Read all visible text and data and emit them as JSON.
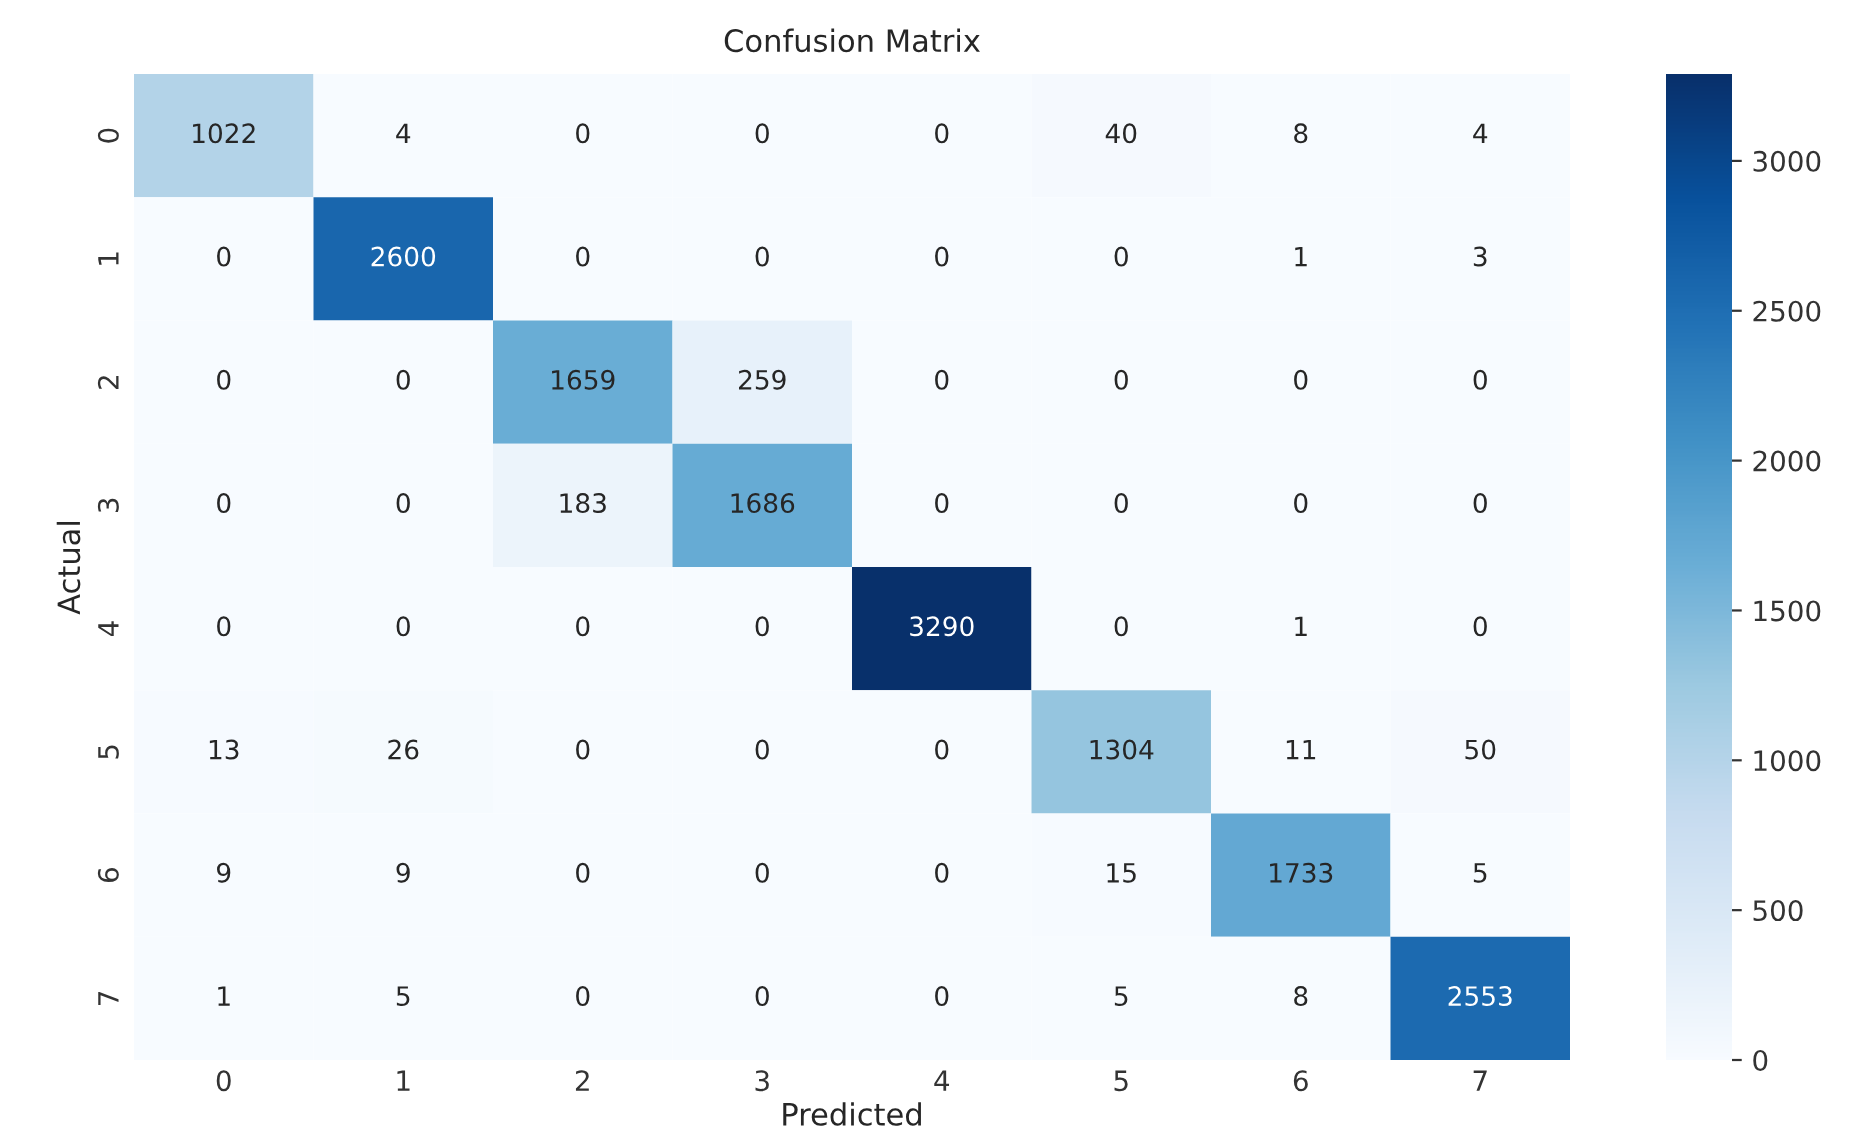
{
  "chart_data": {
    "type": "heatmap",
    "title": "Confusion Matrix",
    "xlabel": "Predicted",
    "ylabel": "Actual",
    "categories": [
      "0",
      "1",
      "2",
      "3",
      "4",
      "5",
      "6",
      "7"
    ],
    "y_categories": [
      "0",
      "1",
      "2",
      "3",
      "4",
      "5",
      "6",
      "7"
    ],
    "cells": [
      [
        1022,
        4,
        0,
        0,
        0,
        40,
        8,
        4
      ],
      [
        0,
        2600,
        0,
        0,
        0,
        0,
        1,
        3
      ],
      [
        0,
        0,
        1659,
        259,
        0,
        0,
        0,
        0
      ],
      [
        0,
        0,
        183,
        1686,
        0,
        0,
        0,
        0
      ],
      [
        0,
        0,
        0,
        0,
        3290,
        0,
        1,
        0
      ],
      [
        13,
        26,
        0,
        0,
        0,
        1304,
        11,
        50
      ],
      [
        9,
        9,
        0,
        0,
        0,
        15,
        1733,
        5
      ],
      [
        1,
        5,
        0,
        0,
        0,
        5,
        8,
        2553
      ]
    ],
    "clim": [
      0,
      3290
    ],
    "cticks": [
      0,
      500,
      1000,
      1500,
      2000,
      2500,
      3000
    ],
    "data_labels": true
  }
}
